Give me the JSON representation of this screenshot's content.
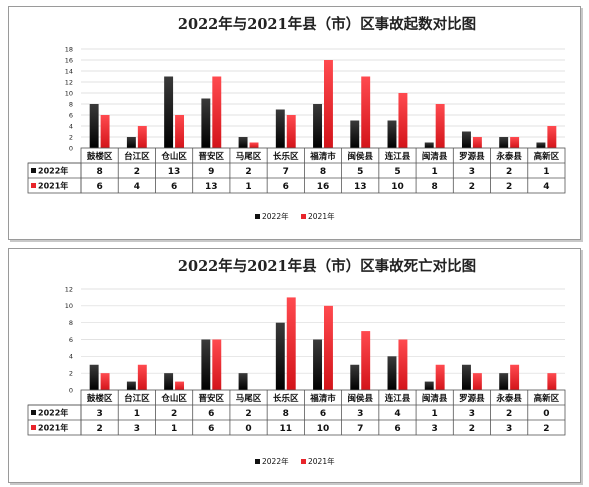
{
  "colors": {
    "y2022": "#111111",
    "y2021": "#e8252b"
  },
  "chart_data": [
    {
      "type": "bar",
      "title": "2022年与2021年县（市）区事故起数对比图",
      "categories": [
        "鼓楼区",
        "台江区",
        "仓山区",
        "晋安区",
        "马尾区",
        "长乐区",
        "福清市",
        "闽侯县",
        "连江县",
        "闽清县",
        "罗源县",
        "永泰县",
        "高新区"
      ],
      "ylim": [
        0,
        18
      ],
      "yticks": [
        0,
        2,
        4,
        6,
        8,
        10,
        12,
        14,
        16,
        18
      ],
      "grid": true,
      "legend_position": "bottom",
      "data_table": true,
      "series": [
        {
          "name": "2022年",
          "values": [
            8,
            2,
            13,
            9,
            2,
            7,
            8,
            5,
            5,
            1,
            3,
            2,
            1
          ]
        },
        {
          "name": "2021年",
          "values": [
            6,
            4,
            6,
            13,
            1,
            6,
            16,
            13,
            10,
            8,
            2,
            2,
            4
          ]
        }
      ]
    },
    {
      "type": "bar",
      "title": "2022年与2021年县（市）区事故死亡对比图",
      "categories": [
        "鼓楼区",
        "台江区",
        "仓山区",
        "晋安区",
        "马尾区",
        "长乐区",
        "福清市",
        "闽侯县",
        "连江县",
        "闽清县",
        "罗源县",
        "永泰县",
        "高新区"
      ],
      "ylim": [
        0,
        12
      ],
      "yticks": [
        0,
        2,
        4,
        6,
        8,
        10,
        12
      ],
      "grid": true,
      "legend_position": "bottom",
      "data_table": true,
      "series": [
        {
          "name": "2022年",
          "values": [
            3,
            1,
            2,
            6,
            2,
            8,
            6,
            3,
            4,
            1,
            3,
            2,
            0
          ]
        },
        {
          "name": "2021年",
          "values": [
            2,
            3,
            1,
            6,
            0,
            11,
            10,
            7,
            6,
            3,
            2,
            3,
            2
          ]
        }
      ]
    }
  ]
}
